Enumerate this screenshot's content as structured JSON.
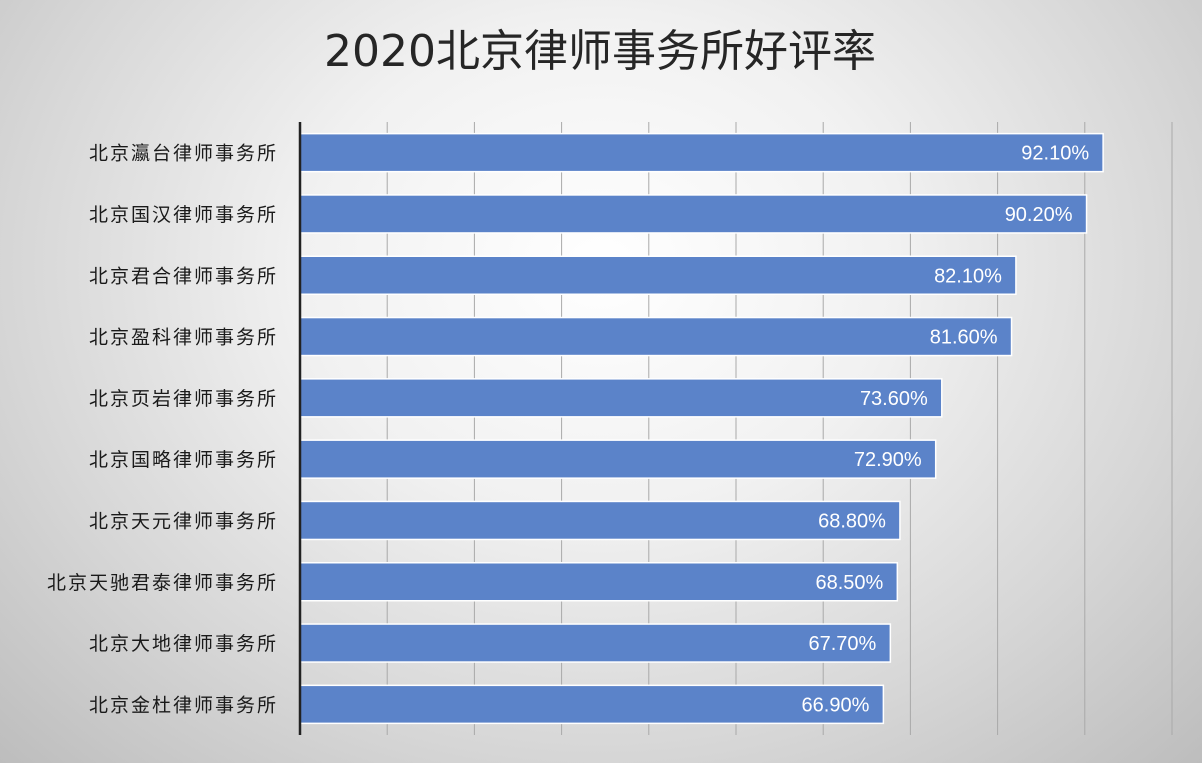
{
  "chart_data": {
    "type": "bar",
    "orientation": "horizontal",
    "title": "2020北京律师事务所好评率",
    "categories": [
      "北京瀛台律师事务所",
      "北京国汉律师事务所",
      "北京君合律师事务所",
      "北京盈科律师事务所",
      "北京页岩律师事务所",
      "北京国略律师事务所",
      "北京天元律师事务所",
      "北京天驰君泰律师事务所",
      "北京大地律师事务所",
      "北京金杜律师事务所"
    ],
    "values": [
      92.1,
      90.2,
      82.1,
      81.6,
      73.6,
      72.9,
      68.8,
      68.5,
      67.7,
      66.9
    ],
    "data_labels": [
      "92.10%",
      "90.20%",
      "82.10%",
      "81.60%",
      "73.60%",
      "72.90%",
      "68.80%",
      "68.50%",
      "67.70%",
      "66.90%"
    ],
    "xlim": [
      0,
      100
    ],
    "xtick_step": 10,
    "grid": true,
    "legend": "none",
    "xlabel": "",
    "ylabel": "",
    "colors": {
      "bar": "#5b83c9"
    }
  }
}
